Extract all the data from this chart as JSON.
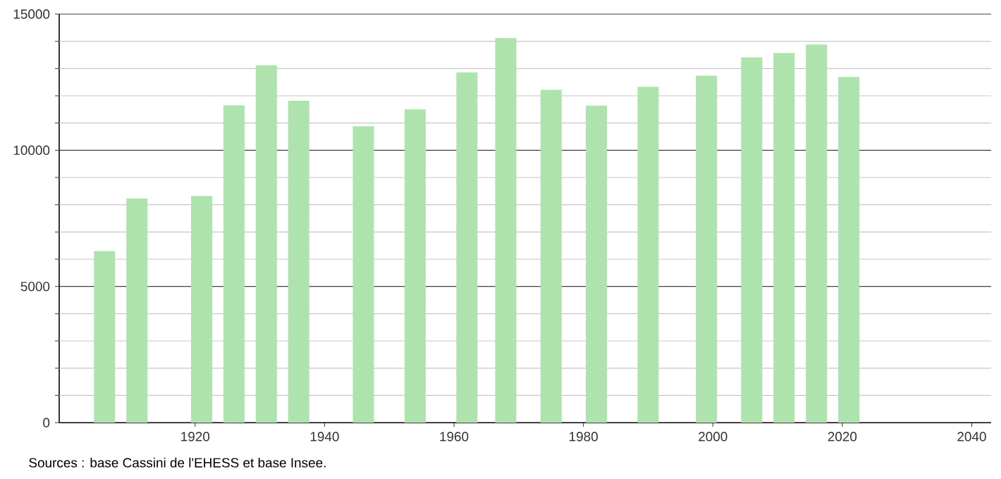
{
  "chart_data": {
    "type": "bar",
    "x": [
      1906,
      1911,
      1921,
      1926,
      1931,
      1936,
      1946,
      1954,
      1962,
      1968,
      1975,
      1982,
      1990,
      1999,
      2006,
      2011,
      2016,
      2021
    ],
    "values": [
      6300,
      8230,
      8320,
      11650,
      13120,
      11820,
      10880,
      11500,
      12860,
      14120,
      12220,
      11640,
      12330,
      12740,
      13410,
      13570,
      13880,
      12690
    ],
    "color": "#aee3ae",
    "xlim": [
      1899,
      2043
    ],
    "xticks": [
      1920,
      1940,
      1960,
      1980,
      2000,
      2020,
      2040
    ],
    "ylim": [
      0,
      15000
    ],
    "yticks": [
      0,
      {
        "value": 1000,
        "label": null
      },
      {
        "value": 2000,
        "label": null
      },
      {
        "value": 3000,
        "label": null
      },
      {
        "value": 4000,
        "label": null
      },
      5000,
      {
        "value": 6000,
        "label": null
      },
      {
        "value": 7000,
        "label": null
      },
      {
        "value": 8000,
        "label": null
      },
      {
        "value": 9000,
        "label": null
      },
      10000,
      {
        "value": 11000,
        "label": null
      },
      {
        "value": 12000,
        "label": null
      },
      {
        "value": 13000,
        "label": null
      },
      {
        "value": 14000,
        "label": null
      },
      15000
    ],
    "grid": "y",
    "annotations": [
      "Sources : base Cassini de l'EHESS et base Insee."
    ]
  }
}
